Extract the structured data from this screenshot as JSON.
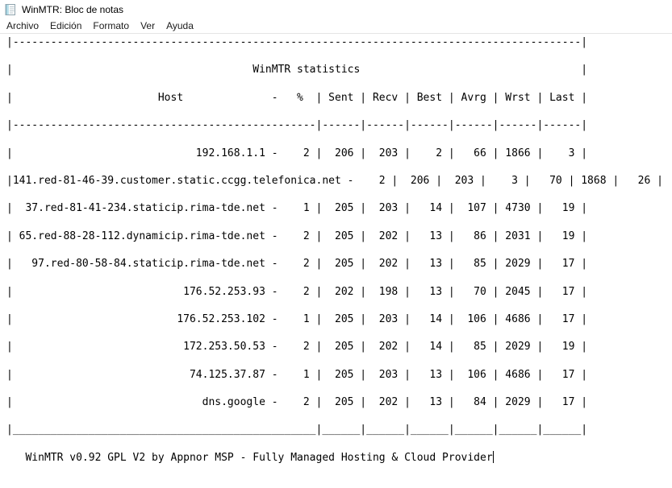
{
  "window": {
    "title": "WinMTR: Bloc de notas"
  },
  "menu": {
    "items": [
      "Archivo",
      "Edición",
      "Formato",
      "Ver",
      "Ayuda"
    ]
  },
  "editor": {
    "table": {
      "title": "WinMTR statistics",
      "host_label": "Host",
      "percent_label": "%",
      "stat_columns": [
        "Sent",
        "Recv",
        "Best",
        "Avrg",
        "Wrst",
        "Last"
      ],
      "rows": [
        {
          "host": "192.168.1.1",
          "loss_pct": 2,
          "sent": 206,
          "recv": 203,
          "best": 2,
          "avrg": 66,
          "wrst": 1866,
          "last": 3
        },
        {
          "host": "141.red-81-46-39.customer.static.ccgg.telefonica.net",
          "loss_pct": 2,
          "sent": 206,
          "recv": 203,
          "best": 3,
          "avrg": 70,
          "wrst": 1868,
          "last": 26
        },
        {
          "host": "37.red-81-41-234.staticip.rima-tde.net",
          "loss_pct": 1,
          "sent": 205,
          "recv": 203,
          "best": 14,
          "avrg": 107,
          "wrst": 4730,
          "last": 19
        },
        {
          "host": "65.red-88-28-112.dynamicip.rima-tde.net",
          "loss_pct": 2,
          "sent": 205,
          "recv": 202,
          "best": 13,
          "avrg": 86,
          "wrst": 2031,
          "last": 19
        },
        {
          "host": "97.red-80-58-84.staticip.rima-tde.net",
          "loss_pct": 2,
          "sent": 205,
          "recv": 202,
          "best": 13,
          "avrg": 85,
          "wrst": 2029,
          "last": 17
        },
        {
          "host": "176.52.253.93",
          "loss_pct": 2,
          "sent": 202,
          "recv": 198,
          "best": 13,
          "avrg": 70,
          "wrst": 2045,
          "last": 17
        },
        {
          "host": "176.52.253.102",
          "loss_pct": 1,
          "sent": 205,
          "recv": 203,
          "best": 14,
          "avrg": 106,
          "wrst": 4686,
          "last": 17
        },
        {
          "host": "172.253.50.53",
          "loss_pct": 2,
          "sent": 205,
          "recv": 202,
          "best": 14,
          "avrg": 85,
          "wrst": 2029,
          "last": 19
        },
        {
          "host": "74.125.37.87",
          "loss_pct": 1,
          "sent": 205,
          "recv": 203,
          "best": 13,
          "avrg": 106,
          "wrst": 4686,
          "last": 17
        },
        {
          "host": "dns.google",
          "loss_pct": 2,
          "sent": 205,
          "recv": 202,
          "best": 13,
          "avrg": 84,
          "wrst": 2029,
          "last": 17
        }
      ]
    },
    "footer": "   WinMTR v0.92 GPL V2 by Appnor MSP - Fully Managed Hosting & Cloud Provider"
  },
  "colors": {
    "text": "#000000",
    "background": "#ffffff",
    "menu_border": "#e5e5e5",
    "icon_accent": "#8fc3d4"
  }
}
